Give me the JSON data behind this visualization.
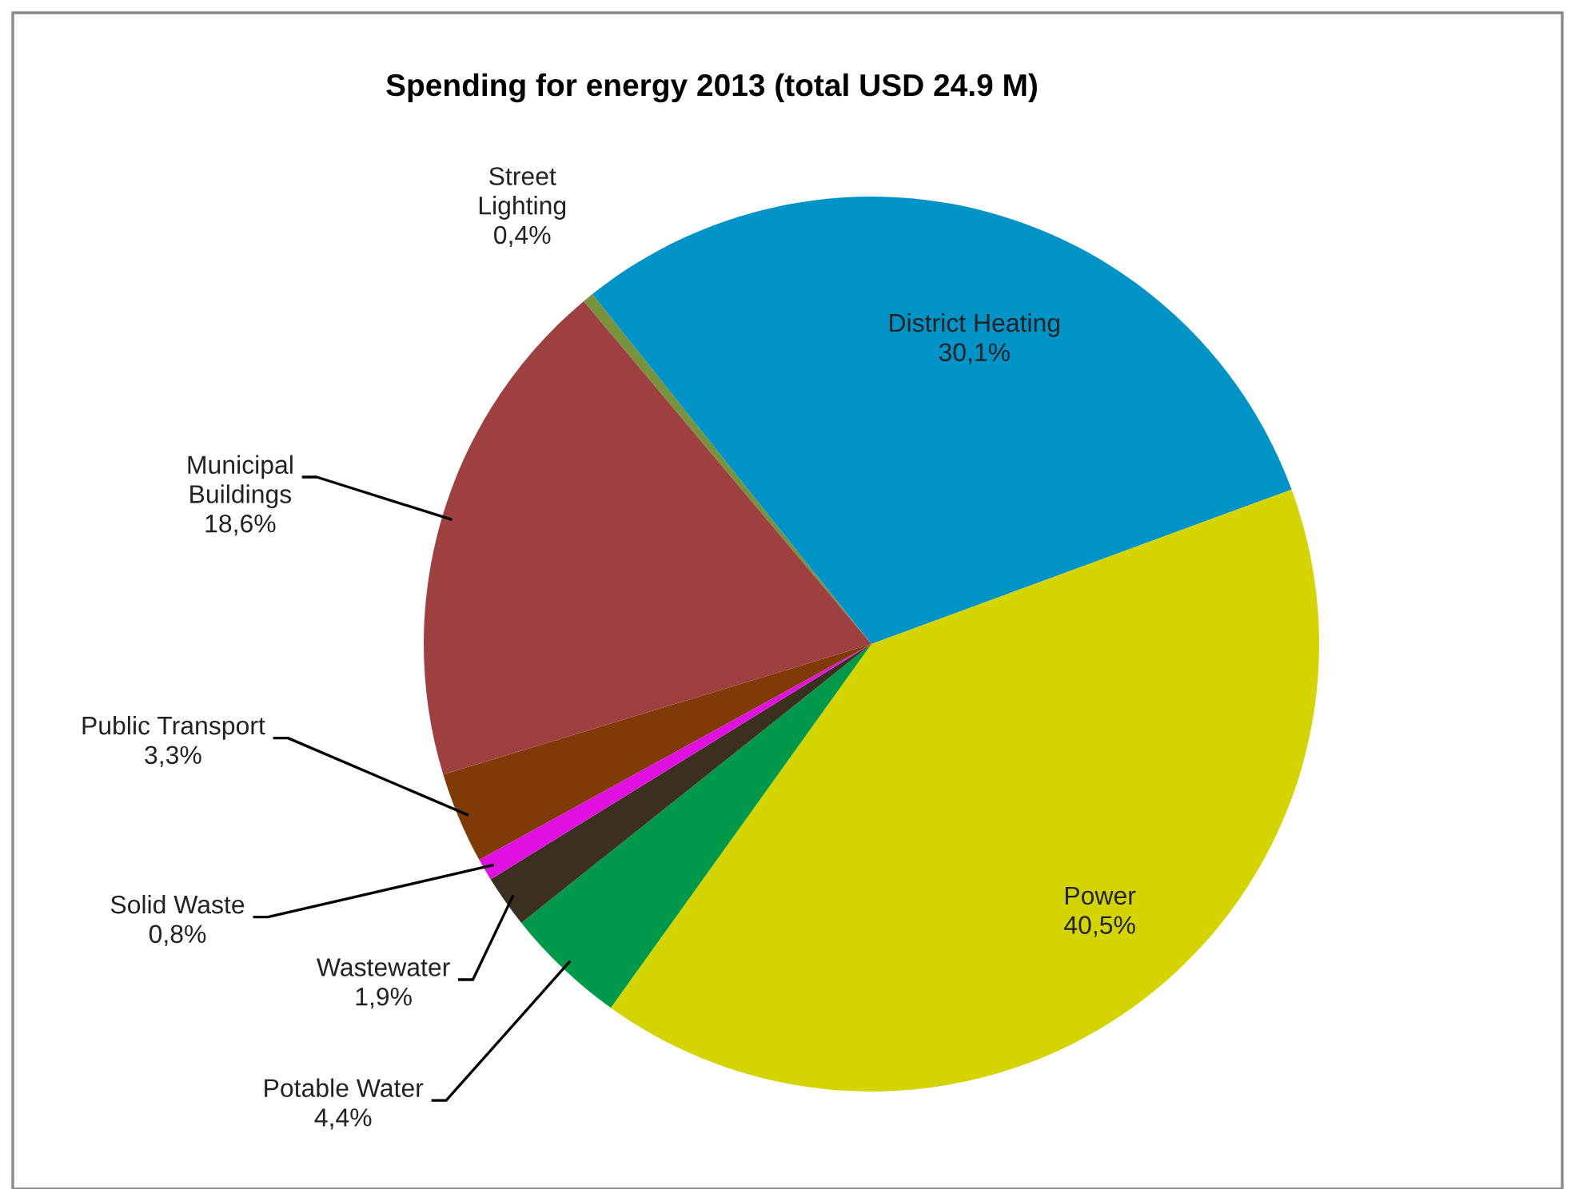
{
  "chart_data": {
    "type": "pie",
    "title": "Spending for energy 2013 (total USD 24.9 M)",
    "categories": [
      "Street\nLighting",
      "District Heating",
      "Power",
      "Potable Water",
      "Wastewater",
      "Solid Waste",
      "Public Transport",
      "Municipal\nBuildings"
    ],
    "values": [
      0.4,
      30.1,
      40.5,
      4.4,
      1.9,
      0.8,
      3.3,
      18.6
    ],
    "value_labels": [
      "0,4%",
      "30,1%",
      "40,5%",
      "4,4%",
      "1,9%",
      "0,8%",
      "3,3%",
      "18,6%"
    ],
    "colors": [
      "#77933c",
      "#0093c8",
      "#d4d400",
      "#00994a",
      "#3b3020",
      "#e010e0",
      "#7f3a05",
      "#9e4040"
    ],
    "legend": false
  }
}
